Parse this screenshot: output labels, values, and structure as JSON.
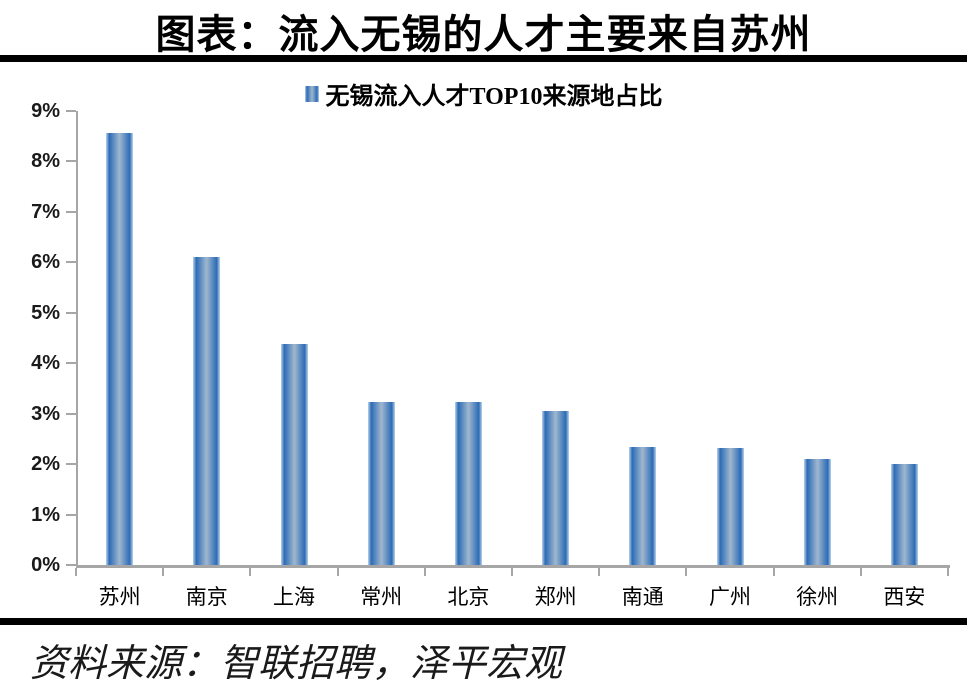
{
  "title": "图表：流入无锡的人才主要来自苏州",
  "legend": {
    "label": "无锡流入人才TOP10来源地占比"
  },
  "source": "资料来源：智联招聘，泽平宏观",
  "colors": {
    "bar_edge": "#2d6cb6",
    "bar_center": "#9fb7cf",
    "bar_outer_sliver": "#bcd3e9",
    "axis": "#a6a6a6",
    "rule": "#000000",
    "text": "#000000"
  },
  "chart_data": {
    "type": "bar",
    "title": "无锡流入人才TOP10来源地占比",
    "categories": [
      "苏州",
      "南京",
      "上海",
      "常州",
      "北京",
      "郑州",
      "南通",
      "广州",
      "徐州",
      "西安"
    ],
    "values": [
      8.56,
      6.11,
      4.38,
      3.24,
      3.24,
      3.05,
      2.33,
      2.31,
      2.11,
      2.01
    ],
    "xlabel": "",
    "ylabel": "",
    "ylim": [
      0,
      9
    ],
    "ytick_step": 1,
    "yticks": [
      "0%",
      "1%",
      "2%",
      "3%",
      "4%",
      "5%",
      "6%",
      "7%",
      "8%",
      "9%"
    ],
    "grid": false,
    "legend_position": "top-center"
  }
}
